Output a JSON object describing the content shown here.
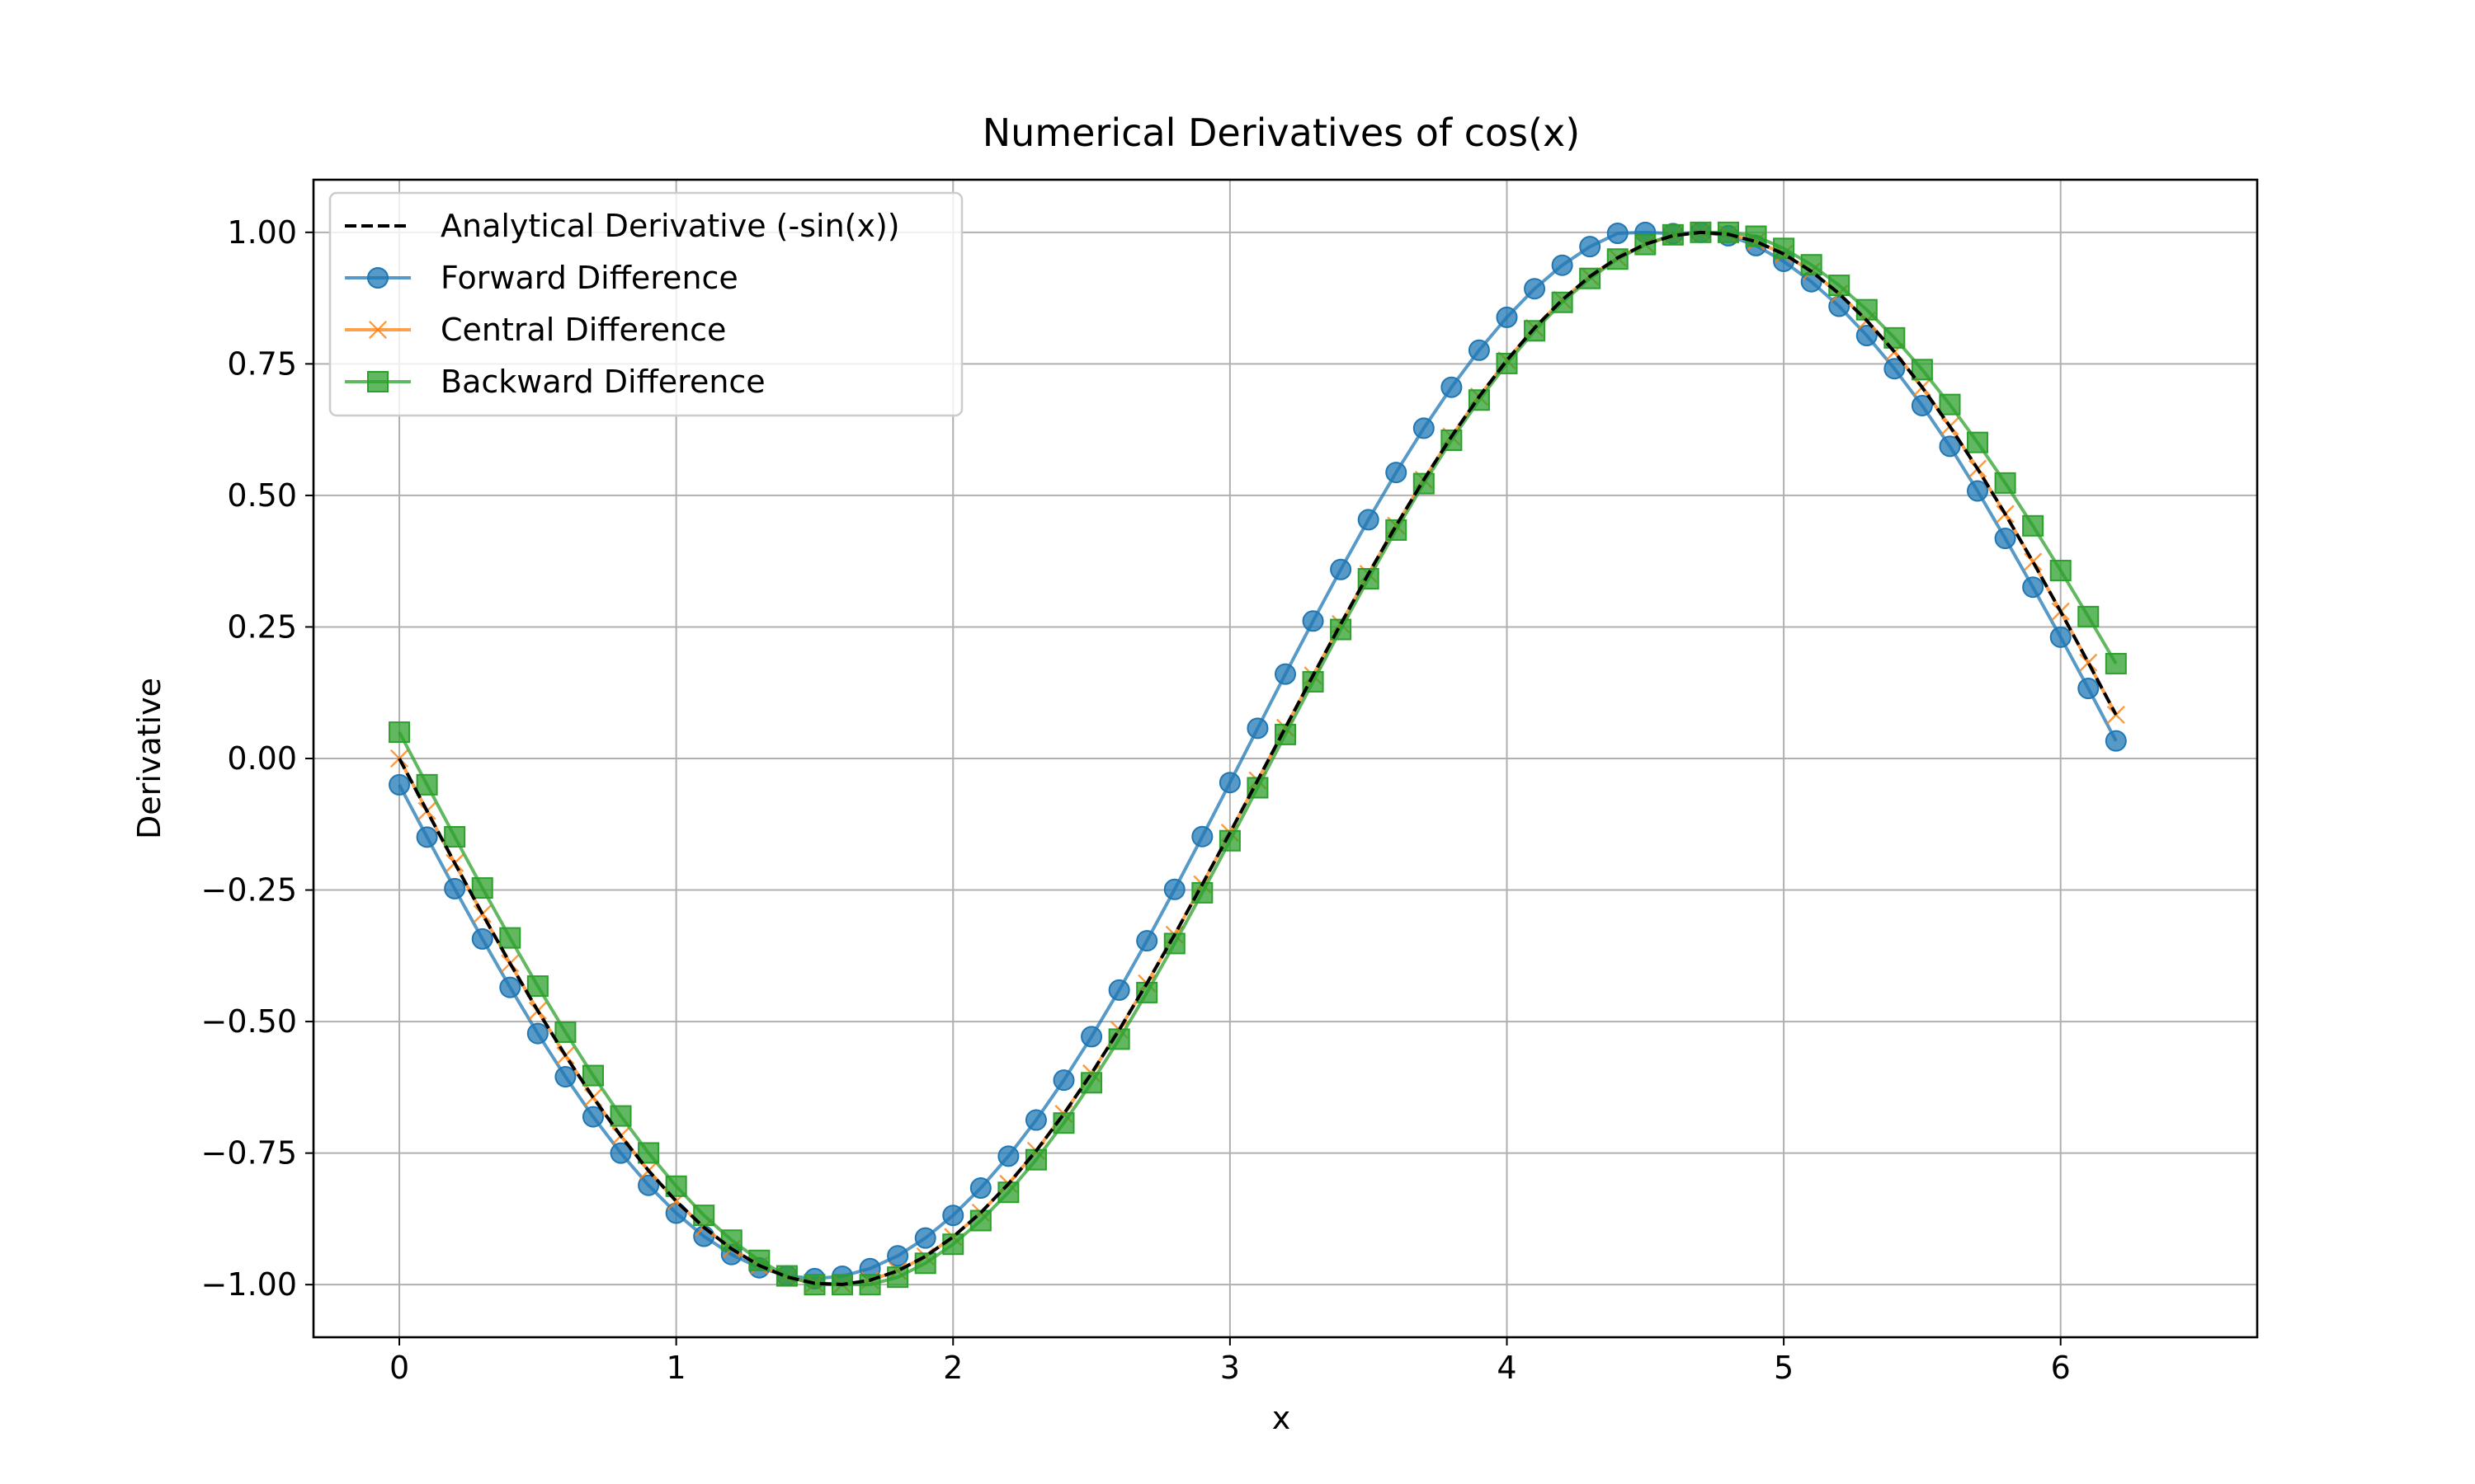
{
  "chart_data": {
    "type": "line",
    "title": "Numerical Derivatives of cos(x)",
    "xlabel": "x",
    "ylabel": "Derivative",
    "xlim": [
      -0.31,
      6.71
    ],
    "ylim": [
      -1.1,
      1.1
    ],
    "xticks": [
      0,
      1,
      2,
      3,
      4,
      5,
      6
    ],
    "xtick_labels": [
      "0",
      "1",
      "2",
      "3",
      "4",
      "5",
      "6"
    ],
    "yticks": [
      -1.0,
      -0.75,
      -0.5,
      -0.25,
      0.0,
      0.25,
      0.5,
      0.75,
      1.0
    ],
    "ytick_labels": [
      "−1.00",
      "−0.75",
      "−0.50",
      "−0.25",
      "0.00",
      "0.25",
      "0.50",
      "0.75",
      "1.00"
    ],
    "grid": true,
    "legend_position": "upper-left",
    "x": [
      0.0,
      0.1,
      0.2,
      0.3,
      0.4,
      0.5,
      0.6,
      0.7,
      0.8,
      0.9,
      1.0,
      1.1,
      1.2,
      1.3,
      1.4,
      1.5,
      1.6,
      1.7,
      1.8,
      1.9,
      2.0,
      2.1,
      2.2,
      2.3,
      2.4,
      2.5,
      2.6,
      2.7,
      2.8,
      2.9,
      3.0,
      3.1,
      3.2,
      3.3,
      3.4,
      3.5,
      3.6,
      3.7,
      3.8,
      3.9,
      4.0,
      4.1,
      4.2,
      4.3,
      4.4,
      4.5,
      4.6,
      4.7,
      4.8,
      4.9,
      5.0,
      5.1,
      5.2,
      5.3,
      5.4,
      5.5,
      5.6,
      5.7,
      5.8,
      5.9,
      6.0,
      6.1,
      6.2
    ],
    "series": [
      {
        "name": "Analytical Derivative (-sin(x))",
        "color": "#000000",
        "linestyle": "dashed",
        "marker": "none",
        "values": [
          0.0,
          -0.0998,
          -0.1987,
          -0.2955,
          -0.3894,
          -0.4794,
          -0.5646,
          -0.6442,
          -0.7174,
          -0.7833,
          -0.8415,
          -0.8912,
          -0.932,
          -0.9636,
          -0.9854,
          -0.9975,
          -0.9996,
          -0.9917,
          -0.9738,
          -0.9463,
          -0.9093,
          -0.8632,
          -0.8085,
          -0.7457,
          -0.6755,
          -0.5985,
          -0.5155,
          -0.4274,
          -0.335,
          -0.2392,
          -0.1411,
          -0.0416,
          0.0584,
          0.1577,
          0.2555,
          0.3508,
          0.4425,
          0.5298,
          0.6119,
          0.6878,
          0.7568,
          0.8183,
          0.8716,
          0.9162,
          0.9516,
          0.9775,
          0.9937,
          0.9999,
          0.9962,
          0.9825,
          0.9589,
          0.9258,
          0.8835,
          0.8323,
          0.7728,
          0.7055,
          0.6313,
          0.5507,
          0.4646,
          0.3739,
          0.2794,
          0.1822,
          0.0831
        ]
      },
      {
        "name": "Forward Difference",
        "color": "#1f77b4",
        "linestyle": "solid",
        "marker": "circle",
        "values": [
          -0.05,
          -0.1494,
          -0.2474,
          -0.343,
          -0.4351,
          -0.5227,
          -0.6049,
          -0.681,
          -0.75,
          -0.8112,
          -0.8641,
          -0.9081,
          -0.9428,
          -0.9679,
          -0.9832,
          -0.9886,
          -0.984,
          -0.9695,
          -0.9453,
          -0.9114,
          -0.8684,
          -0.8164,
          -0.7558,
          -0.6872,
          -0.6114,
          -0.5287,
          -0.4402,
          -0.3465,
          -0.2488,
          -0.1484,
          -0.0458,
          0.0574,
          0.1604,
          0.2612,
          0.3592,
          0.4538,
          0.5436,
          0.6277,
          0.7056,
          0.776,
          0.8385,
          0.8928,
          0.9375,
          0.9728,
          0.9981,
          1.0,
          0.9976,
          1.0,
          0.9936,
          0.9748,
          0.9449,
          0.9061,
          0.8594,
          0.8038,
          0.7408,
          0.6707,
          0.5933,
          0.5085,
          0.4183,
          0.3256,
          0.2306,
          0.1331,
          0.0334
        ]
      },
      {
        "name": "Central Difference",
        "color": "#ff7f0e",
        "linestyle": "solid",
        "marker": "x",
        "values": [
          0.0,
          -0.0998,
          -0.1987,
          -0.2955,
          -0.3894,
          -0.4794,
          -0.5646,
          -0.6442,
          -0.7174,
          -0.7833,
          -0.8415,
          -0.8912,
          -0.932,
          -0.9636,
          -0.9854,
          -0.9975,
          -0.9996,
          -0.9917,
          -0.9738,
          -0.9463,
          -0.9093,
          -0.8632,
          -0.8085,
          -0.7457,
          -0.6755,
          -0.5985,
          -0.5155,
          -0.4274,
          -0.335,
          -0.2392,
          -0.1411,
          -0.0416,
          0.0584,
          0.1577,
          0.2555,
          0.3508,
          0.4425,
          0.5298,
          0.6119,
          0.6878,
          0.7568,
          0.8183,
          0.8716,
          0.9162,
          0.9516,
          0.9775,
          0.9937,
          0.9999,
          0.9962,
          0.9825,
          0.9589,
          0.9258,
          0.8835,
          0.8323,
          0.7728,
          0.7055,
          0.6313,
          0.5507,
          0.4646,
          0.3739,
          0.2794,
          0.1822,
          0.0831
        ]
      },
      {
        "name": "Backward Difference",
        "color": "#2ca02c",
        "linestyle": "solid",
        "marker": "square",
        "values": [
          0.05,
          -0.0499,
          -0.1488,
          -0.2461,
          -0.341,
          -0.4326,
          -0.5201,
          -0.6026,
          -0.6794,
          -0.7497,
          -0.8129,
          -0.8683,
          -0.9155,
          -0.9539,
          -0.9834,
          -1.0,
          -1.0,
          -1.0,
          -0.9859,
          -0.9594,
          -0.9233,
          -0.8783,
          -0.8246,
          -0.7626,
          -0.6929,
          -0.6163,
          -0.5334,
          -0.4449,
          -0.3517,
          -0.2552,
          -0.1563,
          -0.0556,
          0.0456,
          0.1458,
          0.2452,
          0.3416,
          0.4342,
          0.5224,
          0.6049,
          0.6812,
          0.7507,
          0.8128,
          0.8669,
          0.9124,
          0.9492,
          0.9769,
          0.9953,
          1.0,
          1.0,
          0.9926,
          0.9694,
          0.9383,
          0.8993,
          0.8529,
          0.7994,
          0.7391,
          0.6728,
          0.6007,
          0.5236,
          0.4422,
          0.3573,
          0.2697,
          0.1803
        ]
      }
    ]
  }
}
